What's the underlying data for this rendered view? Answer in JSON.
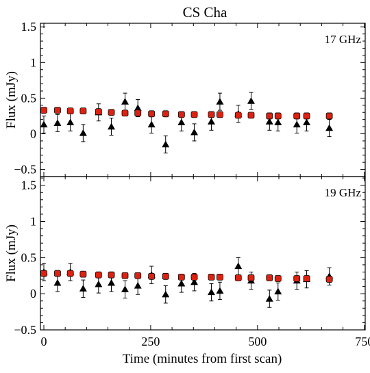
{
  "chart_data": {
    "type": "scatter",
    "title": "CS Cha",
    "xlabel": "Time (minutes from first scan)",
    "xlim": [
      -8,
      752
    ],
    "xticks": [
      "0",
      "250",
      "500",
      "750"
    ],
    "xtick_values": [
      0,
      250,
      500,
      750
    ],
    "colors": {
      "model": "#dd2211",
      "observed": "#000000"
    },
    "panels": [
      {
        "band_label": "17 GHz",
        "ylabel": "Flux (mJy)",
        "ylim": [
          -0.6,
          1.55
        ],
        "yticks": [
          "−0.5",
          "0",
          "0.5",
          "1",
          "1.5"
        ],
        "ytick_values": [
          -0.5,
          0,
          0.5,
          1,
          1.5
        ],
        "series": [
          {
            "marker": "square-red",
            "x": [
              0,
              32,
              62,
              92,
              128,
              158,
              190,
              220,
              252,
              285,
              322,
              352,
              392,
              412,
              455,
              485,
              528,
              548,
              592,
              615,
              668
            ],
            "y": [
              0.33,
              0.33,
              0.32,
              0.32,
              0.31,
              0.3,
              0.29,
              0.29,
              0.28,
              0.28,
              0.27,
              0.27,
              0.27,
              0.27,
              0.26,
              0.26,
              0.25,
              0.25,
              0.25,
              0.25,
              0.25
            ]
          },
          {
            "marker": "triangle-black",
            "x": [
              0,
              32,
              62,
              92,
              128,
              158,
              190,
              220,
              252,
              285,
              322,
              352,
              392,
              412,
              455,
              485,
              528,
              548,
              592,
              615,
              668
            ],
            "y": [
              0.13,
              0.15,
              0.16,
              0.01,
              0.3,
              0.1,
              0.45,
              0.36,
              0.13,
              -0.15,
              0.16,
              0.02,
              0.17,
              0.45,
              0.28,
              0.46,
              0.17,
              0.16,
              0.13,
              0.16,
              0.08
            ],
            "error": [
              0.12,
              0.12,
              0.12,
              0.12,
              0.12,
              0.12,
              0.12,
              0.12,
              0.12,
              0.12,
              0.12,
              0.12,
              0.12,
              0.12,
              0.12,
              0.12,
              0.12,
              0.12,
              0.12,
              0.12,
              0.12
            ]
          }
        ]
      },
      {
        "band_label": "19 GHz",
        "ylabel": "Flux (mJy)",
        "ylim": [
          -0.5,
          1.62
        ],
        "yticks": [
          "−0.5",
          "0",
          "0.5",
          "1",
          "1.5"
        ],
        "ytick_values": [
          -0.5,
          0,
          0.5,
          1,
          1.5
        ],
        "series": [
          {
            "marker": "square-red",
            "x": [
              0,
              32,
              62,
              92,
              128,
              158,
              190,
              220,
              252,
              285,
              322,
              352,
              392,
              412,
              455,
              485,
              528,
              548,
              592,
              615,
              668
            ],
            "y": [
              0.28,
              0.28,
              0.28,
              0.27,
              0.26,
              0.26,
              0.25,
              0.25,
              0.24,
              0.24,
              0.23,
              0.23,
              0.23,
              0.23,
              0.22,
              0.22,
              0.22,
              0.21,
              0.21,
              0.21,
              0.2
            ]
          },
          {
            "marker": "triangle-black",
            "x": [
              0,
              32,
              62,
              92,
              128,
              158,
              190,
              220,
              252,
              285,
              322,
              352,
              392,
              412,
              455,
              485,
              528,
              548,
              592,
              615,
              668
            ],
            "y": [
              0.3,
              0.15,
              0.3,
              0.07,
              0.13,
              0.15,
              0.06,
              0.11,
              0.26,
              -0.01,
              0.14,
              0.16,
              0.02,
              0.04,
              0.38,
              0.18,
              -0.07,
              0.03,
              0.18,
              0.2,
              0.24
            ],
            "error": [
              0.12,
              0.12,
              0.12,
              0.12,
              0.12,
              0.12,
              0.12,
              0.12,
              0.12,
              0.12,
              0.12,
              0.12,
              0.12,
              0.12,
              0.12,
              0.12,
              0.12,
              0.12,
              0.12,
              0.12,
              0.12
            ]
          }
        ]
      }
    ]
  }
}
